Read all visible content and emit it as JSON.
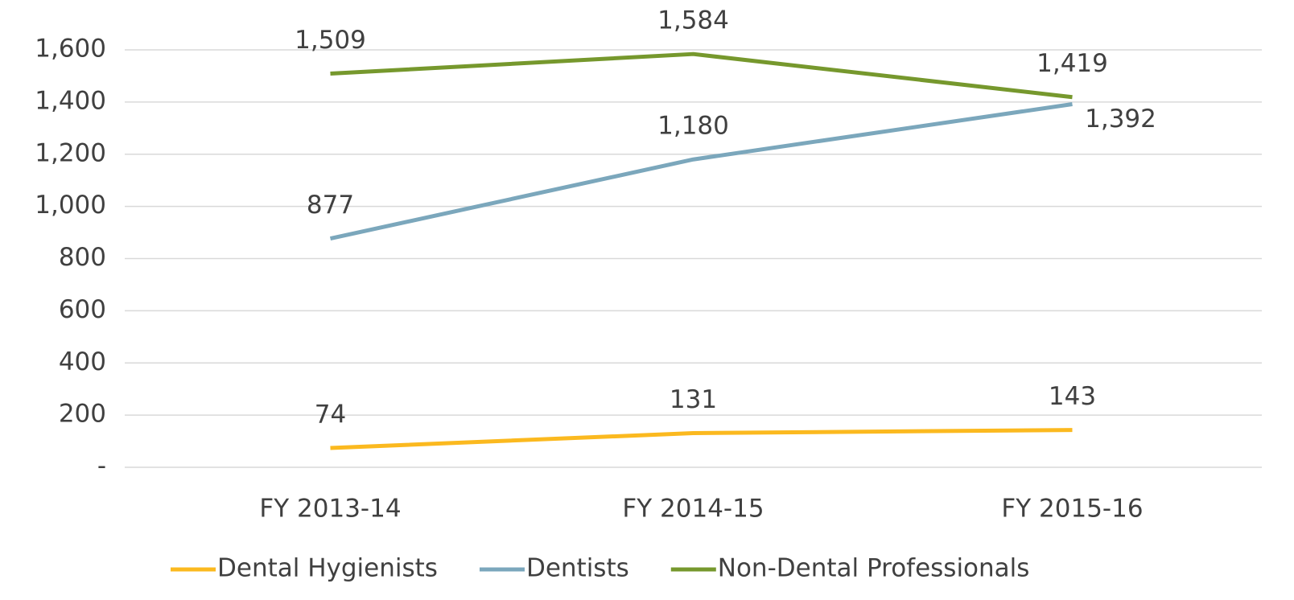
{
  "chart_data": {
    "type": "line",
    "categories": [
      "FY 2013-14",
      "FY 2014-15",
      "FY 2015-16"
    ],
    "series": [
      {
        "name": "Dental Hygienists",
        "color": "#fbb91f",
        "values": [
          74,
          131,
          143
        ],
        "value_labels": [
          "74",
          "131",
          "143"
        ]
      },
      {
        "name": "Dentists",
        "color": "#7ba7bc",
        "values": [
          877,
          1180,
          1392
        ],
        "value_labels": [
          "877",
          "1,180",
          "1,392"
        ]
      },
      {
        "name": "Non-Dental Professionals",
        "color": "#76982d",
        "values": [
          1509,
          1584,
          1419
        ],
        "value_labels": [
          "1,509",
          "1,584",
          "1,419"
        ]
      }
    ],
    "ylim": [
      0,
      1600
    ],
    "yticks": [
      {
        "value": 0,
        "label": "-"
      },
      200,
      400,
      600,
      800,
      {
        "value": 1000,
        "label": "1,000"
      },
      {
        "value": 1200,
        "label": "1,200"
      },
      {
        "value": 1400,
        "label": "1,400"
      },
      {
        "value": 1600,
        "label": "1,600"
      }
    ],
    "grid": true,
    "legend": "bottom"
  }
}
